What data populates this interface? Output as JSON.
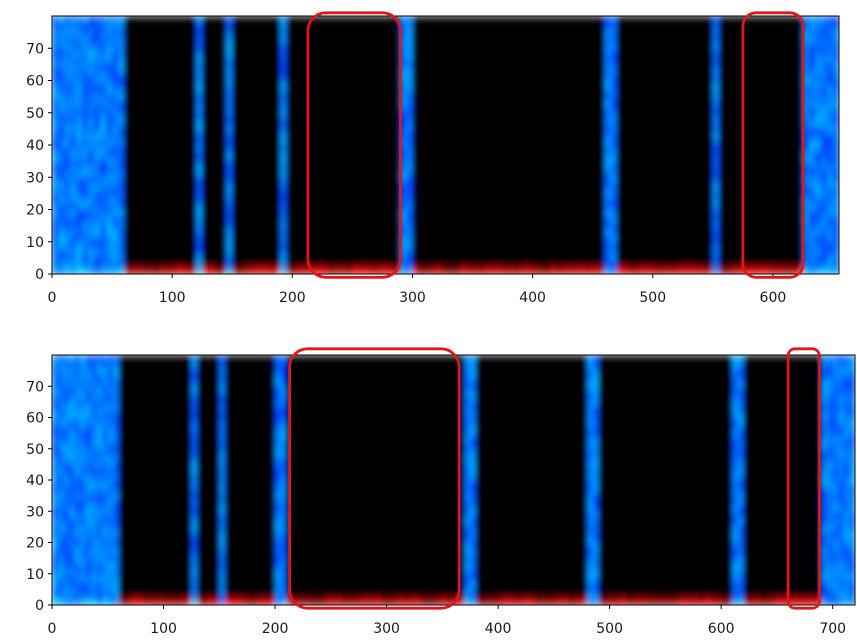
{
  "chart_data": [
    {
      "type": "heatmap",
      "title": "",
      "xlabel": "",
      "ylabel": "",
      "colormap": "jet",
      "xlim": [
        0,
        655
      ],
      "ylim": [
        0,
        80
      ],
      "xticks": [
        0,
        100,
        200,
        300,
        400,
        500,
        600
      ],
      "yticks": [
        0,
        10,
        20,
        30,
        40,
        50,
        60,
        70
      ],
      "tick_labels_x": [
        "0",
        "100",
        "200",
        "300",
        "400",
        "500",
        "600"
      ],
      "tick_labels_y": [
        "0",
        "10",
        "20",
        "30",
        "40",
        "50",
        "60",
        "70"
      ],
      "silence_regions": [
        [
          0,
          60
        ],
        [
          120,
          127
        ],
        [
          143,
          150
        ],
        [
          190,
          197
        ],
        [
          292,
          300
        ],
        [
          462,
          470
        ],
        [
          548,
          556
        ],
        [
          625,
          655
        ]
      ],
      "annotations": [
        {
          "shape": "rounded-rectangle",
          "color": "#e0161b",
          "x_range": [
            213,
            290
          ],
          "y_range": [
            -1,
            81
          ]
        },
        {
          "shape": "rounded-rectangle",
          "color": "#e0161b",
          "x_range": [
            575,
            625
          ],
          "y_range": [
            -1,
            81
          ]
        }
      ]
    },
    {
      "type": "heatmap",
      "title": "",
      "xlabel": "",
      "ylabel": "",
      "colormap": "jet",
      "xlim": [
        0,
        720
      ],
      "ylim": [
        0,
        80
      ],
      "xticks": [
        0,
        100,
        200,
        300,
        400,
        500,
        600,
        700
      ],
      "yticks": [
        0,
        10,
        20,
        30,
        40,
        50,
        60,
        70
      ],
      "tick_labels_x": [
        "0",
        "100",
        "200",
        "300",
        "400",
        "500",
        "600",
        "700"
      ],
      "tick_labels_y": [
        "0",
        "10",
        "20",
        "30",
        "40",
        "50",
        "60",
        "70"
      ],
      "silence_regions": [
        [
          0,
          58
        ],
        [
          125,
          132
        ],
        [
          150,
          157
        ],
        [
          200,
          208
        ],
        [
          368,
          378
        ],
        [
          480,
          488
        ],
        [
          610,
          618
        ],
        [
          690,
          720
        ]
      ],
      "annotations": [
        {
          "shape": "rounded-rectangle",
          "color": "#e0161b",
          "x_range": [
            213,
            365
          ],
          "y_range": [
            -1,
            82
          ]
        },
        {
          "shape": "rounded-rectangle",
          "color": "#e0161b",
          "x_range": [
            660,
            688
          ],
          "y_range": [
            -1,
            82
          ]
        }
      ]
    }
  ]
}
